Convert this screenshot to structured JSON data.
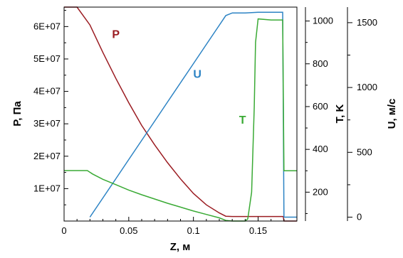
{
  "chart_data": {
    "type": "line",
    "xlabel": "Z, м",
    "xlim": [
      0,
      0.18
    ],
    "x_ticks": [
      "0",
      "0.05",
      "0.1",
      "0.15"
    ],
    "x_tick_values": [
      0,
      0.05,
      0.1,
      0.15
    ],
    "axes": {
      "P": {
        "label": "P, Па",
        "lim": [
          0,
          66000000
        ],
        "ticks": [
          "1E+07",
          "2E+07",
          "3E+07",
          "4E+07",
          "5E+07",
          "6E+07"
        ],
        "tick_values": [
          10000000,
          20000000,
          30000000,
          40000000,
          50000000,
          60000000
        ]
      },
      "T": {
        "label": "T, K",
        "lim": [
          65,
          1065
        ],
        "ticks": [
          "200",
          "400",
          "600",
          "800",
          "1000"
        ],
        "tick_values": [
          200,
          400,
          600,
          800,
          1000
        ]
      },
      "U": {
        "label": "U, м/с",
        "lim": [
          -30,
          1620
        ],
        "ticks": [
          "0",
          "500",
          "1000",
          "1500"
        ],
        "tick_values": [
          0,
          500,
          1000,
          1500
        ]
      }
    },
    "series": [
      {
        "name": "P",
        "axis": "P",
        "color": "#9b1c22",
        "x": [
          0,
          0.01,
          0.02,
          0.03,
          0.04,
          0.05,
          0.06,
          0.07,
          0.08,
          0.09,
          0.1,
          0.11,
          0.12,
          0.125,
          0.13,
          0.14,
          0.15,
          0.16,
          0.1695,
          0.17,
          0.18
        ],
        "y": [
          66000000,
          66000000,
          60500000,
          52000000,
          44000000,
          36500000,
          29500000,
          23500000,
          18000000,
          13000000,
          8500000,
          5000000,
          2500000,
          1500000,
          1400000,
          1400000,
          1400000,
          1400000,
          1400000,
          0,
          0
        ]
      },
      {
        "name": "U",
        "axis": "U",
        "color": "#2c83c4",
        "x": [
          0.02,
          0.03,
          0.04,
          0.05,
          0.06,
          0.07,
          0.08,
          0.09,
          0.1,
          0.11,
          0.12,
          0.125,
          0.13,
          0.14,
          0.15,
          0.16,
          0.169,
          0.17,
          0.18
        ],
        "y": [
          0,
          148,
          296,
          444,
          592,
          740,
          888,
          1036,
          1184,
          1332,
          1480,
          1555,
          1575,
          1575,
          1580,
          1580,
          1580,
          0,
          0
        ]
      },
      {
        "name": "T",
        "axis": "T",
        "color": "#3aaa35",
        "x": [
          0,
          0.018,
          0.022,
          0.03,
          0.04,
          0.05,
          0.06,
          0.07,
          0.08,
          0.09,
          0.1,
          0.11,
          0.12,
          0.125,
          0.13,
          0.14,
          0.142,
          0.145,
          0.147,
          0.148,
          0.15,
          0.16,
          0.169,
          0.17,
          0.18
        ],
        "y": [
          301,
          301,
          285,
          260,
          235,
          210,
          188,
          168,
          148,
          130,
          112,
          96,
          80,
          68,
          65,
          65,
          75,
          200,
          600,
          900,
          1010,
          1005,
          1005,
          300,
          300
        ]
      }
    ],
    "annotations": [
      {
        "text": "P",
        "color": "#9b1c22",
        "x": 0.04,
        "y_axis": "P",
        "y": 56500000
      },
      {
        "text": "U",
        "color": "#2c83c4",
        "x": 0.103,
        "y_axis": "U",
        "y": 1075
      },
      {
        "text": "T",
        "color": "#3aaa35",
        "x": 0.138,
        "y_axis": "T",
        "y": 520
      }
    ],
    "grid": false
  }
}
